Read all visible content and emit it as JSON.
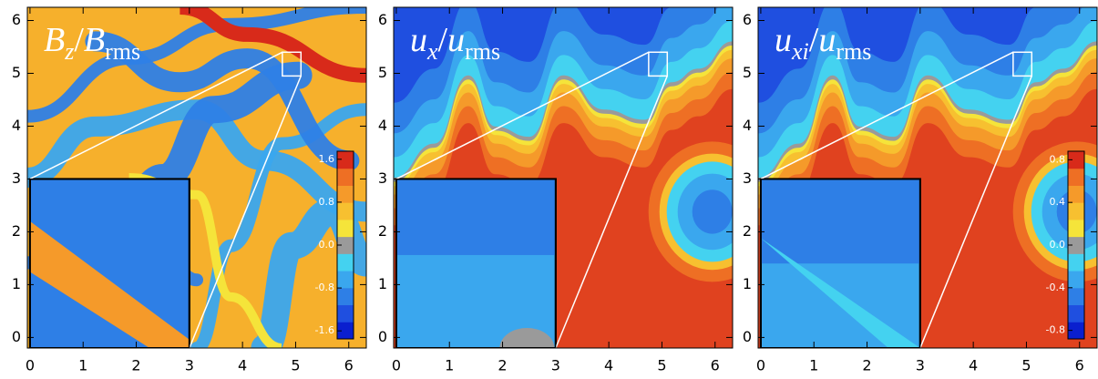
{
  "chart_data": [
    {
      "type": "heatmap",
      "title_parts": [
        "B",
        "z",
        "/",
        "B",
        "rms"
      ],
      "xlim": [
        -0.05,
        6.33
      ],
      "ylim": [
        -0.2,
        6.25
      ],
      "xticks": [
        0,
        1,
        2,
        3,
        4,
        5,
        6
      ],
      "yticks": [
        0,
        1,
        2,
        3,
        4,
        5,
        6
      ],
      "colorbar": {
        "lim": [
          -1.75,
          1.75
        ],
        "ticks": [
          -1.6,
          -0.8,
          {
            "value": 0,
            "label": "0.0"
          },
          0.8,
          1.6
        ]
      }
    },
    {
      "type": "heatmap",
      "title_parts": [
        "u",
        "x",
        "/",
        "u",
        "rms"
      ],
      "xlim": [
        -0.05,
        6.33
      ],
      "ylim": [
        -0.2,
        6.25
      ],
      "xticks": [
        0,
        1,
        2,
        3,
        4,
        5,
        6
      ],
      "yticks": [
        0,
        1,
        2,
        3,
        4,
        5,
        6
      ]
    },
    {
      "type": "heatmap",
      "title_parts": [
        "u",
        "xi",
        "/",
        "u",
        "rms"
      ],
      "xlim": [
        -0.05,
        6.33
      ],
      "ylim": [
        -0.2,
        6.25
      ],
      "xticks": [
        0,
        1,
        2,
        3,
        4,
        5,
        6
      ],
      "yticks": [
        0,
        1,
        2,
        3,
        4,
        5,
        6
      ],
      "colorbar": {
        "lim": [
          -0.88,
          0.88
        ],
        "ticks": [
          -0.8,
          -0.4,
          {
            "value": 0,
            "label": "0.0"
          },
          0.4,
          0.8
        ]
      }
    }
  ]
}
